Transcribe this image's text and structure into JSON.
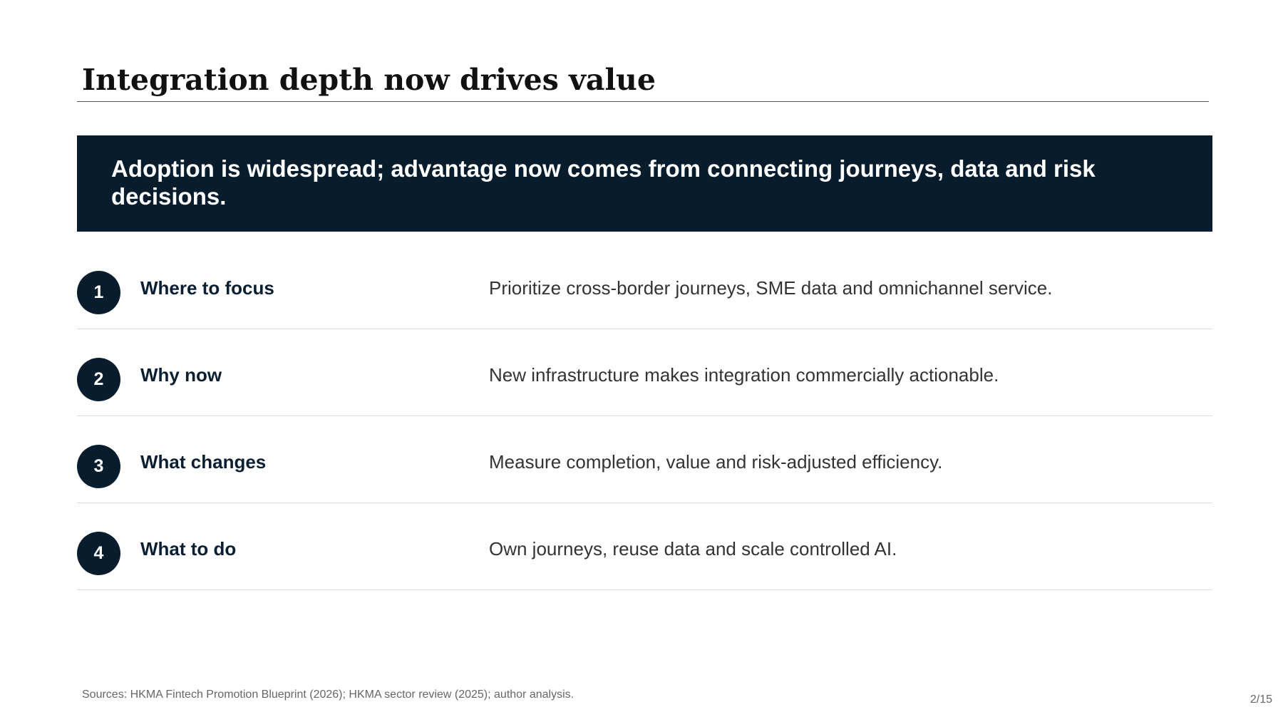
{
  "slide": {
    "title": "Integration depth now drives value",
    "banner": "Adoption is widespread; advantage now comes from connecting journeys, data and risk decisions.",
    "rows": [
      {
        "number": "1",
        "label": "Where to focus",
        "description": "Prioritize cross-border journeys, SME data and omnichannel service."
      },
      {
        "number": "2",
        "label": "Why now",
        "description": "New infrastructure makes integration commercially actionable."
      },
      {
        "number": "3",
        "label": "What changes",
        "description": "Measure completion, value and risk-adjusted efficiency."
      },
      {
        "number": "4",
        "label": "What to do",
        "description": "Own journeys, reuse data and scale controlled AI."
      }
    ],
    "sources": "Sources: HKMA Fintech Promotion Blueprint (2026); HKMA sector review (2025); author analysis.",
    "page_number": "2/15"
  },
  "colors": {
    "banner_background": "#071c2c",
    "circle_background": "#071c2c",
    "label_text": "#0b1f33",
    "body_text": "#333333"
  }
}
